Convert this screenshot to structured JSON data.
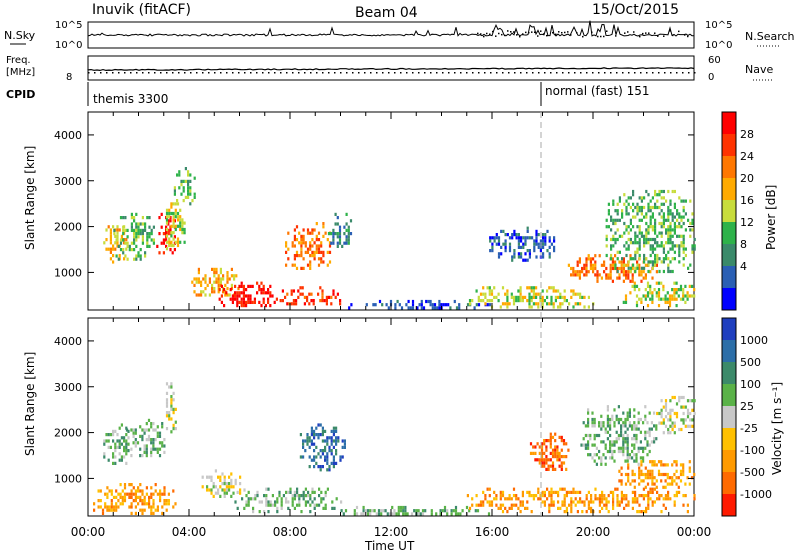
{
  "header": {
    "station": "Inuvik (fitACF)",
    "beam": "Beam 04",
    "date": "15/Oct/2015"
  },
  "top_panels": {
    "nsky_label": "N.Sky",
    "nsky_ticks": [
      "10^5",
      "10^0"
    ],
    "nsearch_label": "N.Search",
    "nsearch_ticks": [
      "10^5",
      "10^0"
    ],
    "freq_label": "Freq.",
    "freq_unit": "[MHz]",
    "freq_ticks": [
      "8"
    ],
    "nave_label": "Nave",
    "nave_ticks": [
      "60",
      "0"
    ],
    "cpid_label": "CPID",
    "cpid_entries": [
      {
        "name": "themis 3300",
        "start_hour": 0
      },
      {
        "name": "normal (fast) 151",
        "start_hour": 18
      }
    ]
  },
  "chart_data": [
    {
      "type": "heatmap",
      "panel": "power",
      "xlabel": "",
      "ylabel": "Slant Range [km]",
      "x_range_hours": [
        0,
        24
      ],
      "y_range_km": [
        180,
        4500
      ],
      "y_ticks": [
        1000,
        2000,
        3000,
        4000
      ],
      "colorbar": {
        "label": "Power [dB]",
        "ticks": [
          "28",
          "24",
          "20",
          "16",
          "12",
          "8",
          "4"
        ],
        "colors": [
          "#ff0000",
          "#ff3300",
          "#ff7700",
          "#ffaa00",
          "#c8dc3c",
          "#2eb24a",
          "#3a8a6a",
          "#2a5fb4",
          "#0000ff"
        ]
      },
      "regions": [
        {
          "x": [
            0.6,
            1.5
          ],
          "y": [
            1200,
            2100
          ],
          "level": 3
        },
        {
          "x": [
            1.0,
            2.6
          ],
          "y": [
            1300,
            2300
          ],
          "level": 5
        },
        {
          "x": [
            2.7,
            3.4
          ],
          "y": [
            1400,
            2300
          ],
          "level": 0
        },
        {
          "x": [
            3.0,
            3.8
          ],
          "y": [
            1500,
            2600
          ],
          "level": 4
        },
        {
          "x": [
            3.4,
            4.2
          ],
          "y": [
            2400,
            3300
          ],
          "level": 5
        },
        {
          "x": [
            4.0,
            6.0
          ],
          "y": [
            500,
            1100
          ],
          "level": 3
        },
        {
          "x": [
            5.0,
            7.5
          ],
          "y": [
            250,
            800
          ],
          "level": 0
        },
        {
          "x": [
            7.5,
            10.0
          ],
          "y": [
            300,
            700
          ],
          "level": 1
        },
        {
          "x": [
            7.8,
            9.6
          ],
          "y": [
            1100,
            2100
          ],
          "level": 2
        },
        {
          "x": [
            9.5,
            10.4
          ],
          "y": [
            1500,
            2300
          ],
          "level": 6
        },
        {
          "x": [
            10.3,
            16.0
          ],
          "y": [
            200,
            400
          ],
          "level": 7
        },
        {
          "x": [
            15.0,
            20.0
          ],
          "y": [
            250,
            700
          ],
          "level": 4
        },
        {
          "x": [
            15.8,
            18.5
          ],
          "y": [
            1300,
            2000
          ],
          "level": 7
        },
        {
          "x": [
            19.0,
            22.5
          ],
          "y": [
            800,
            1400
          ],
          "level": 2
        },
        {
          "x": [
            20.5,
            24.0
          ],
          "y": [
            1000,
            2800
          ],
          "level": 5
        },
        {
          "x": [
            21.0,
            24.0
          ],
          "y": [
            300,
            800
          ],
          "level": 4
        }
      ]
    },
    {
      "type": "heatmap",
      "panel": "velocity",
      "xlabel": "Time UT",
      "ylabel": "Slant Range [km]",
      "x_range_hours": [
        0,
        24
      ],
      "y_range_km": [
        180,
        4500
      ],
      "x_ticks": [
        "00:00",
        "04:00",
        "08:00",
        "12:00",
        "16:00",
        "20:00",
        "00:00"
      ],
      "y_ticks": [
        1000,
        2000,
        3000,
        4000
      ],
      "colorbar": {
        "label": "Velocity [m s⁻¹]",
        "ticks": [
          "1000",
          "500",
          "100",
          "25",
          "-25",
          "-100",
          "-500",
          "-1000"
        ],
        "colors": [
          "#1f3fbf",
          "#2c6ea8",
          "#3c8a6a",
          "#5ab248",
          "#c8c8c8",
          "#ffc000",
          "#ff9a00",
          "#ff6a00",
          "#ff1a00"
        ]
      },
      "regions": [
        {
          "x": [
            0.6,
            1.6
          ],
          "y": [
            1300,
            2200
          ],
          "level": 3
        },
        {
          "x": [
            1.5,
            3.0
          ],
          "y": [
            1500,
            2300
          ],
          "level": 3
        },
        {
          "x": [
            3.0,
            3.5
          ],
          "y": [
            2000,
            3100
          ],
          "level": 4
        },
        {
          "x": [
            0.2,
            3.5
          ],
          "y": [
            250,
            900
          ],
          "level": 6
        },
        {
          "x": [
            4.5,
            6.2
          ],
          "y": [
            600,
            1200
          ],
          "level": 4
        },
        {
          "x": [
            5.8,
            10.0
          ],
          "y": [
            300,
            800
          ],
          "level": 3
        },
        {
          "x": [
            8.3,
            10.2
          ],
          "y": [
            1200,
            2200
          ],
          "level": 1
        },
        {
          "x": [
            10.0,
            16.0
          ],
          "y": [
            200,
            400
          ],
          "level": 3
        },
        {
          "x": [
            15.0,
            24.0
          ],
          "y": [
            300,
            800
          ],
          "level": 6
        },
        {
          "x": [
            17.5,
            19.0
          ],
          "y": [
            1200,
            2000
          ],
          "level": 7
        },
        {
          "x": [
            19.5,
            22.5
          ],
          "y": [
            1300,
            2600
          ],
          "level": 3
        },
        {
          "x": [
            21.0,
            24.0
          ],
          "y": [
            800,
            1400
          ],
          "level": 6
        },
        {
          "x": [
            22.5,
            24.0
          ],
          "y": [
            2000,
            2800
          ],
          "level": 4
        }
      ]
    }
  ]
}
